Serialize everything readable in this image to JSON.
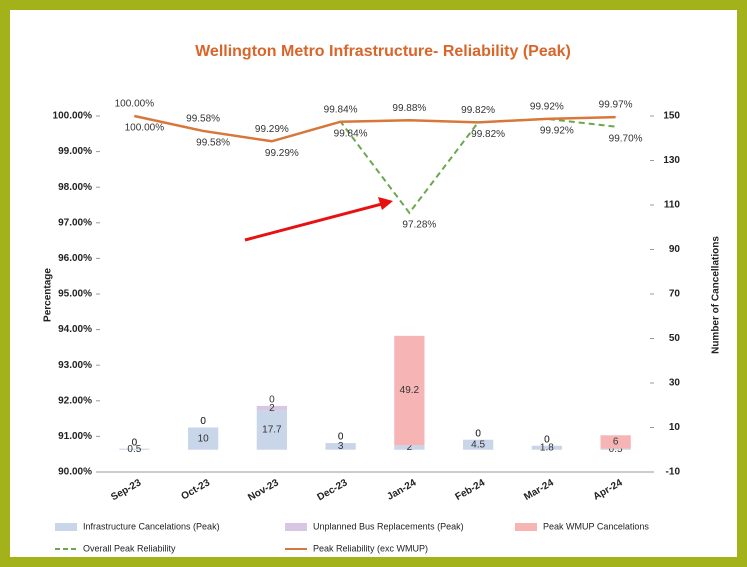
{
  "chart_data": {
    "type": "bar-line",
    "title": "Wellington Metro Infrastructure- Reliability (Peak)",
    "y_label": "Percentage",
    "y2_label": "Number of Cancellations",
    "categories": [
      "Sep-23",
      "Oct-23",
      "Nov-23",
      "Dec-23",
      "Jan-24",
      "Feb-24",
      "Mar-24",
      "Apr-24"
    ],
    "ylim": [
      90,
      100
    ],
    "yticks": [
      {
        "value": 90,
        "label": "90.00%"
      },
      {
        "value": 91,
        "label": "91.00%"
      },
      {
        "value": 92,
        "label": "92.00%"
      },
      {
        "value": 93,
        "label": "93.00%"
      },
      {
        "value": 94,
        "label": "94.00%"
      },
      {
        "value": 95,
        "label": "95.00%"
      },
      {
        "value": 96,
        "label": "96.00%"
      },
      {
        "value": 97,
        "label": "97.00%"
      },
      {
        "value": 98,
        "label": "98.00%"
      },
      {
        "value": 99,
        "label": "99.00%"
      },
      {
        "value": 100,
        "label": "100.00%"
      }
    ],
    "y2lim": [
      -10,
      150
    ],
    "y2ticks": [
      -10,
      10,
      30,
      50,
      70,
      90,
      110,
      130,
      150
    ],
    "series": [
      {
        "name": "Infrastructure Cancelations (Peak)",
        "kind": "bar",
        "axis": "y2",
        "color": "#c9d6ea",
        "values": [
          0.5,
          10,
          17.7,
          3,
          2,
          4.5,
          1.8,
          0.5
        ]
      },
      {
        "name": "Unplanned Bus Replacements (Peak)",
        "kind": "bar",
        "axis": "y2",
        "color": "#d8c6e2",
        "values": [
          0,
          0,
          2,
          0,
          0,
          0,
          0,
          0
        ]
      },
      {
        "name": "Peak WMUP Cancelations",
        "kind": "bar",
        "axis": "y2",
        "color": "#f6b4b4",
        "values": [
          0,
          0,
          0,
          0,
          49.2,
          0,
          0,
          6
        ]
      },
      {
        "name": "Overall Peak Reliability",
        "kind": "line",
        "dashed": true,
        "color": "#6aa84f",
        "values": [
          100,
          99.58,
          99.29,
          99.84,
          97.28,
          99.82,
          99.92,
          99.7
        ],
        "value_labels": [
          "100.00%",
          "99.58%",
          "99.29%",
          "99.84%",
          "97.28%",
          "99.82%",
          "99.92%",
          "99.70%"
        ]
      },
      {
        "name": "Peak Reliability (exc WMUP)",
        "kind": "line",
        "color": "#d9773a",
        "values": [
          100,
          99.58,
          99.29,
          99.84,
          99.88,
          99.82,
          99.92,
          99.97
        ],
        "value_labels": [
          "100.00%",
          "99.58%",
          "99.29%",
          "99.84%",
          "99.88%",
          "99.82%",
          "99.92%",
          "99.97%"
        ]
      }
    ]
  }
}
